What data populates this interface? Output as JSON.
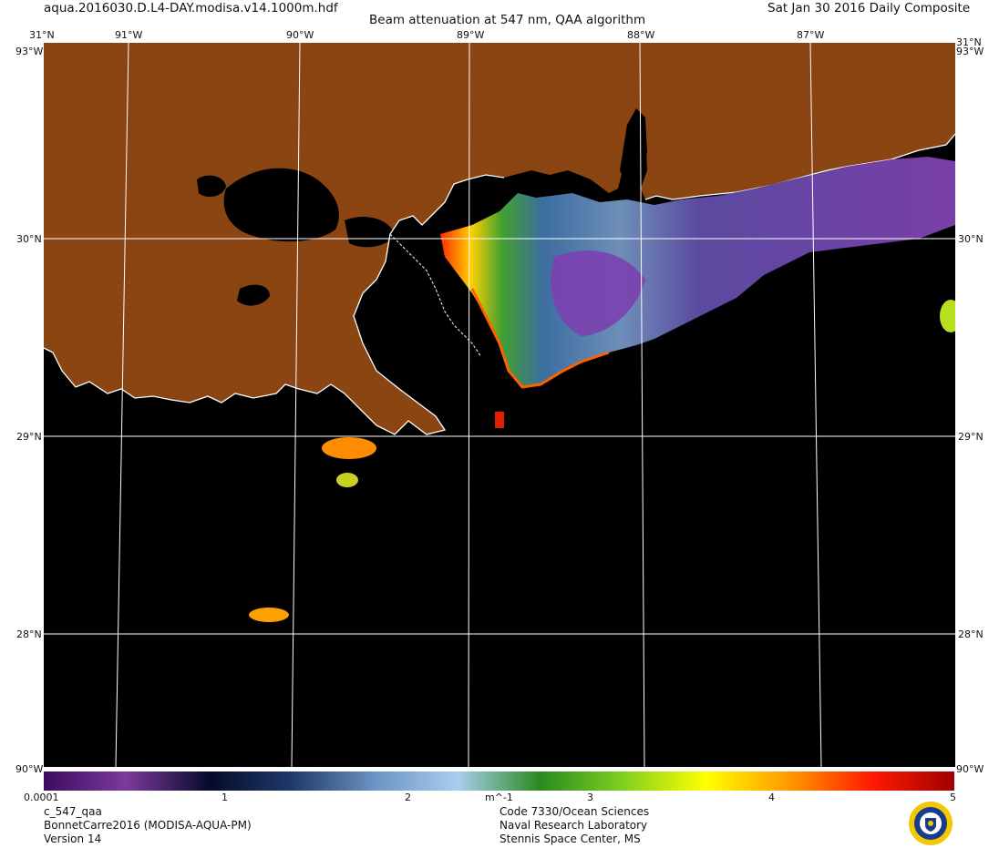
{
  "header": {
    "filename": "aqua.2016030.D.L4-DAY.modisa.v14.1000m.hdf",
    "title": "Beam attenuation at 547 nm, QAA algorithm",
    "date": "Sat Jan 30 2016 Daily Composite"
  },
  "map": {
    "lon_labels": [
      "91°W",
      "90°W",
      "89°W",
      "88°W",
      "87°W"
    ],
    "lat_labels": [
      "30°N",
      "29°N",
      "28°N"
    ],
    "corner_top": "31°N",
    "corner_side": "93°W",
    "corner_bottom": "90°W",
    "colors": {
      "land": "#8b4513",
      "ocean": "#000000",
      "grid": "#ffffff"
    }
  },
  "colorbar": {
    "ticks": [
      "0.0001",
      "1",
      "2",
      "3",
      "4",
      "5"
    ],
    "unit": "m^-1",
    "stops": [
      "#3d0a5e",
      "#7a3a9c",
      "#060a2a",
      "#1e3a6a",
      "#6d94c4",
      "#a9cdf0",
      "#2a8a20",
      "#7fd020",
      "#ffff00",
      "#ff9a00",
      "#ff1a00",
      "#a00000"
    ]
  },
  "footer": {
    "left": [
      "c_547_qaa",
      "BonnetCarre2016 (MODISA-AQUA-PM)",
      "Version 14"
    ],
    "center": [
      "Code 7330/Ocean Sciences",
      "Naval Research Laboratory",
      "Stennis Space Center, MS"
    ]
  },
  "logo": {
    "name": "naval-research-laboratory-seal"
  }
}
